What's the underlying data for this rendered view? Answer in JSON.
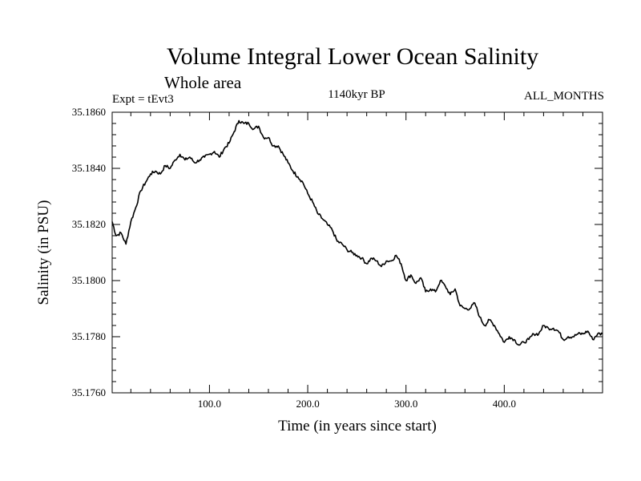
{
  "chart_data": {
    "type": "line",
    "title": "Volume Integral Lower Ocean Salinity",
    "subtitle": "Whole area",
    "experiment": "Expt = tEvt3",
    "period": "1140kyr BP",
    "months": "ALL_MONTHS",
    "xlabel": "Time (in years since start)",
    "ylabel": "Salinity (in PSU)",
    "xlim": [
      1,
      500
    ],
    "ylim": [
      35.176,
      35.186
    ],
    "x_ticks": [
      100,
      200,
      300,
      400
    ],
    "x_tick_labels": [
      "100.0",
      "200.0",
      "300.0",
      "400.0"
    ],
    "y_ticks": [
      35.176,
      35.178,
      35.18,
      35.182,
      35.184,
      35.186
    ],
    "y_tick_labels": [
      "35.1760",
      "35.1780",
      "35.1800",
      "35.1820",
      "35.1840",
      "35.1860"
    ],
    "series": [
      {
        "name": "salinity",
        "x": [
          1,
          5,
          10,
          15,
          20,
          25,
          30,
          35,
          40,
          45,
          50,
          55,
          60,
          65,
          70,
          75,
          80,
          85,
          90,
          95,
          100,
          105,
          110,
          115,
          120,
          125,
          130,
          135,
          140,
          145,
          150,
          155,
          160,
          165,
          170,
          175,
          180,
          185,
          190,
          195,
          200,
          205,
          210,
          215,
          220,
          225,
          230,
          235,
          240,
          245,
          250,
          255,
          260,
          265,
          270,
          275,
          280,
          285,
          290,
          295,
          300,
          305,
          310,
          315,
          320,
          325,
          330,
          335,
          340,
          345,
          350,
          355,
          360,
          365,
          370,
          375,
          380,
          385,
          390,
          395,
          400,
          405,
          410,
          415,
          420,
          425,
          430,
          435,
          440,
          445,
          450,
          455,
          460,
          465,
          470,
          475,
          480,
          485,
          490,
          495,
          500
        ],
        "y": [
          35.1821,
          35.1816,
          35.1817,
          35.1813,
          35.1821,
          35.1826,
          35.1832,
          35.1835,
          35.1838,
          35.1839,
          35.1838,
          35.1841,
          35.184,
          35.1843,
          35.1845,
          35.1843,
          35.1844,
          35.1842,
          35.1843,
          35.1844,
          35.1845,
          35.1846,
          35.1844,
          35.1847,
          35.1849,
          35.1853,
          35.1857,
          35.1856,
          35.1856,
          35.1854,
          35.1855,
          35.1851,
          35.1851,
          35.1848,
          35.1848,
          35.1845,
          35.1842,
          35.1839,
          35.1837,
          35.1835,
          35.1831,
          35.1828,
          35.1824,
          35.1822,
          35.182,
          35.1818,
          35.1814,
          35.1813,
          35.1811,
          35.181,
          35.1809,
          35.1808,
          35.1806,
          35.1808,
          35.1807,
          35.1805,
          35.1807,
          35.1807,
          35.1809,
          35.1806,
          35.18,
          35.1802,
          35.1799,
          35.1801,
          35.1796,
          35.1797,
          35.1796,
          35.18,
          35.1798,
          35.1795,
          35.1797,
          35.1791,
          35.179,
          35.179,
          35.1792,
          35.1787,
          35.1784,
          35.1786,
          35.1784,
          35.1781,
          35.1778,
          35.178,
          35.1779,
          35.1777,
          35.1778,
          35.1779,
          35.1781,
          35.1781,
          35.1784,
          35.1783,
          35.1783,
          35.1782,
          35.1779,
          35.178,
          35.178,
          35.1781,
          35.1781,
          35.1782,
          35.1779,
          35.1781,
          35.1781
        ]
      }
    ]
  }
}
